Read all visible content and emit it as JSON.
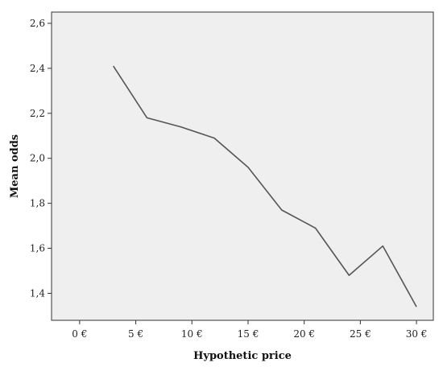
{
  "chart_data": {
    "type": "line",
    "title": "",
    "xlabel": "Hypothetic price",
    "ylabel": "Mean odds",
    "xlim": [
      -2.5,
      31.5
    ],
    "ylim": [
      1.28,
      2.65
    ],
    "x_ticks": [
      0,
      5,
      10,
      15,
      20,
      25,
      30
    ],
    "x_tick_labels": [
      "0 €",
      "5 €",
      "10 €",
      "15 €",
      "20 €",
      "25 €",
      "30 €"
    ],
    "y_ticks": [
      1.4,
      1.6,
      1.8,
      2.0,
      2.2,
      2.4,
      2.6
    ],
    "y_tick_labels": [
      "1,4",
      "1,6",
      "1,8",
      "2,0",
      "2,2",
      "2,4",
      "2,6"
    ],
    "grid": false,
    "legend": "none",
    "plot_background": "#efefef",
    "line_color": "#555555",
    "series": [
      {
        "x": [
          3,
          6,
          9,
          12,
          15,
          18,
          21,
          24,
          27,
          30
        ],
        "values": [
          2.41,
          2.18,
          2.14,
          2.09,
          1.96,
          1.77,
          1.69,
          1.48,
          1.61,
          1.34
        ]
      }
    ]
  }
}
